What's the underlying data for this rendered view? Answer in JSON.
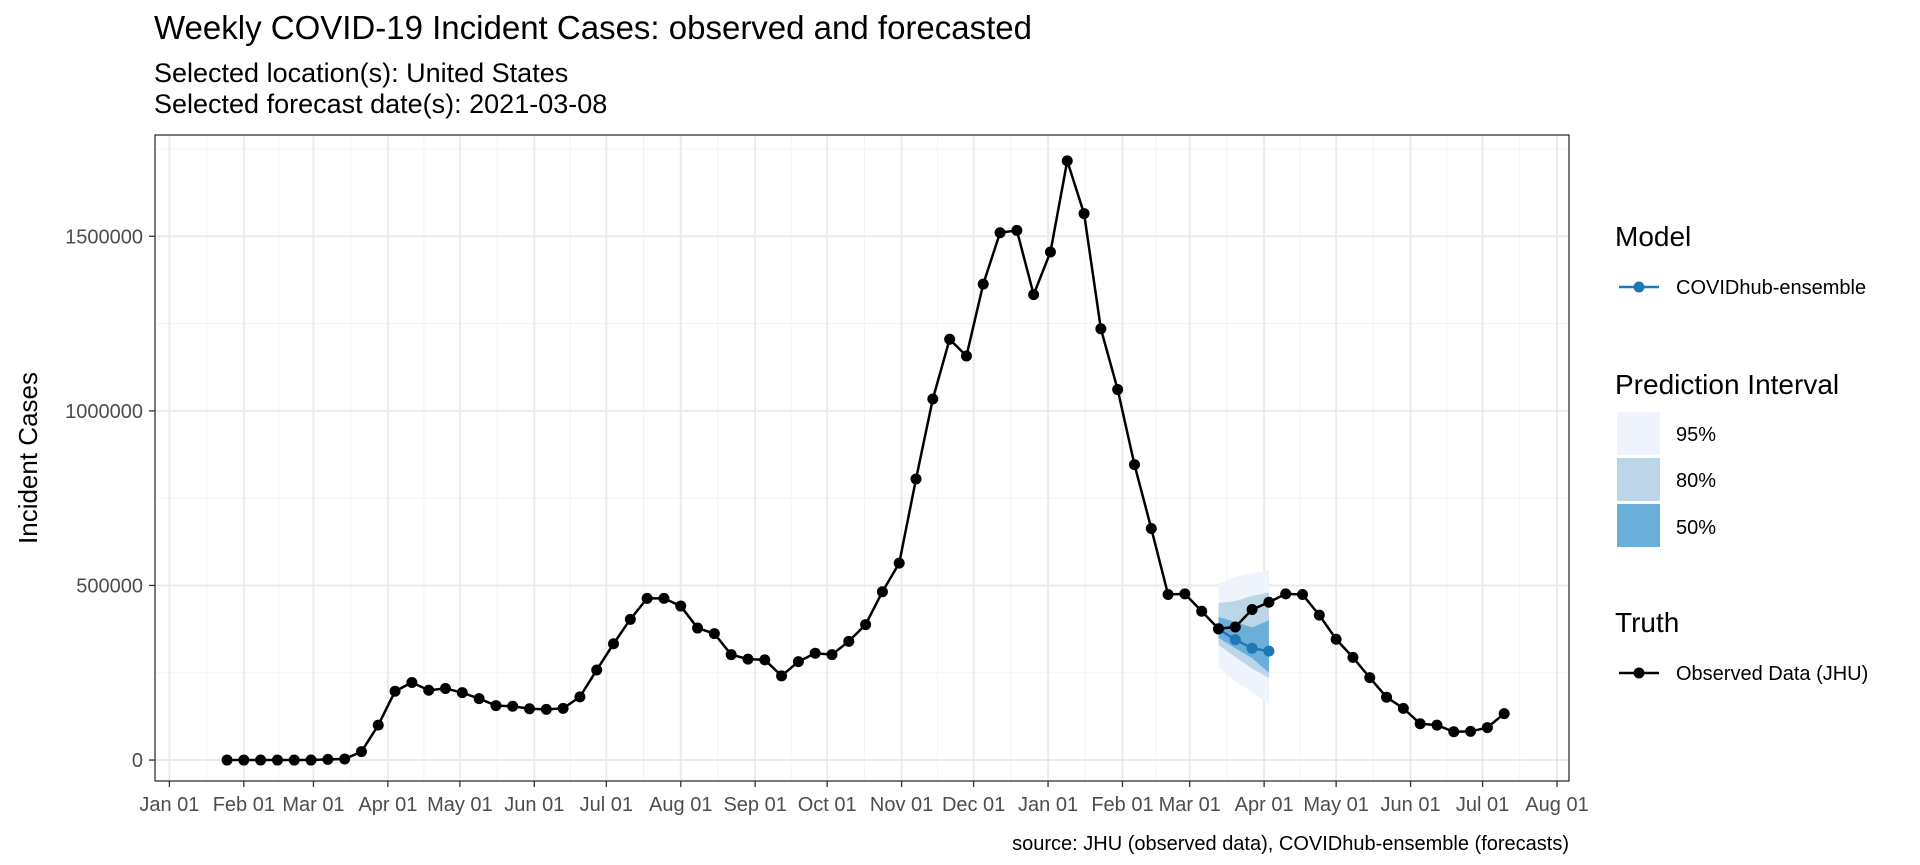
{
  "chart_data": {
    "type": "line",
    "title": "Weekly COVID-19 Incident Cases: observed and forecasted",
    "subtitle_lines": [
      "Selected location(s): United States",
      "Selected forecast date(s): 2021-03-08"
    ],
    "xlabel": "",
    "ylabel": "Incident Cases",
    "caption": "source: JHU (observed data), COVIDhub-ensemble (forecasts)",
    "x_range": [
      "2019-12-26",
      "2021-08-06"
    ],
    "ylim": [
      -60000,
      1790000
    ],
    "grid": true,
    "legend_position": "right",
    "x_ticks": [
      {
        "date": "2020-01-01",
        "label": "Jan 01"
      },
      {
        "date": "2020-02-01",
        "label": "Feb 01"
      },
      {
        "date": "2020-03-01",
        "label": "Mar 01"
      },
      {
        "date": "2020-04-01",
        "label": "Apr 01"
      },
      {
        "date": "2020-05-01",
        "label": "May 01"
      },
      {
        "date": "2020-06-01",
        "label": "Jun 01"
      },
      {
        "date": "2020-07-01",
        "label": "Jul 01"
      },
      {
        "date": "2020-08-01",
        "label": "Aug 01"
      },
      {
        "date": "2020-09-01",
        "label": "Sep 01"
      },
      {
        "date": "2020-10-01",
        "label": "Oct 01"
      },
      {
        "date": "2020-11-01",
        "label": "Nov 01"
      },
      {
        "date": "2020-12-01",
        "label": "Dec 01"
      },
      {
        "date": "2021-01-01",
        "label": "Jan 01"
      },
      {
        "date": "2021-02-01",
        "label": "Feb 01"
      },
      {
        "date": "2021-03-01",
        "label": "Mar 01"
      },
      {
        "date": "2021-04-01",
        "label": "Apr 01"
      },
      {
        "date": "2021-05-01",
        "label": "May 01"
      },
      {
        "date": "2021-06-01",
        "label": "Jun 01"
      },
      {
        "date": "2021-07-01",
        "label": "Jul 01"
      },
      {
        "date": "2021-08-01",
        "label": "Aug 01"
      }
    ],
    "y_ticks": [
      0,
      500000,
      1000000,
      1500000
    ],
    "y_tick_labels": [
      "0",
      "500000",
      "1000000",
      "1500000"
    ],
    "truth": {
      "name": "Observed Data (JHU)",
      "color": "#000000",
      "dates": [
        "2020-01-25",
        "2020-02-01",
        "2020-02-08",
        "2020-02-15",
        "2020-02-22",
        "2020-02-29",
        "2020-03-07",
        "2020-03-14",
        "2020-03-21",
        "2020-03-28",
        "2020-04-04",
        "2020-04-11",
        "2020-04-18",
        "2020-04-25",
        "2020-05-02",
        "2020-05-09",
        "2020-05-16",
        "2020-05-23",
        "2020-05-30",
        "2020-06-06",
        "2020-06-13",
        "2020-06-20",
        "2020-06-27",
        "2020-07-04",
        "2020-07-11",
        "2020-07-18",
        "2020-07-25",
        "2020-08-01",
        "2020-08-08",
        "2020-08-15",
        "2020-08-22",
        "2020-08-29",
        "2020-09-05",
        "2020-09-12",
        "2020-09-19",
        "2020-09-26",
        "2020-10-03",
        "2020-10-10",
        "2020-10-17",
        "2020-10-24",
        "2020-10-31",
        "2020-11-07",
        "2020-11-14",
        "2020-11-21",
        "2020-11-28",
        "2020-12-05",
        "2020-12-12",
        "2020-12-19",
        "2020-12-26",
        "2021-01-02",
        "2021-01-09",
        "2021-01-16",
        "2021-01-23",
        "2021-01-30",
        "2021-02-06",
        "2021-02-13",
        "2021-02-20",
        "2021-02-27",
        "2021-03-06",
        "2021-03-13",
        "2021-03-20",
        "2021-03-27",
        "2021-04-03",
        "2021-04-10",
        "2021-04-17",
        "2021-04-24",
        "2021-05-01",
        "2021-05-08",
        "2021-05-15",
        "2021-05-22",
        "2021-05-29",
        "2021-06-05",
        "2021-06-12",
        "2021-06-19",
        "2021-06-26",
        "2021-07-03",
        "2021-07-10"
      ],
      "values": [
        0,
        0,
        0,
        0,
        0,
        0,
        2000,
        3000,
        24000,
        100000,
        197000,
        222000,
        200000,
        205000,
        193000,
        176000,
        156000,
        154000,
        147000,
        145000,
        148000,
        181000,
        258000,
        333000,
        403000,
        463000,
        463000,
        441000,
        378000,
        362000,
        302000,
        289000,
        287000,
        241000,
        282000,
        306000,
        302000,
        340000,
        388000,
        482000,
        564000,
        805000,
        1034000,
        1205000,
        1157000,
        1363000,
        1510000,
        1517000,
        1333000,
        1455000,
        1716000,
        1565000,
        1235000,
        1061000,
        846000,
        663000,
        474000,
        476000,
        426000,
        376000,
        381000,
        431000,
        452000,
        476000,
        474000,
        415000,
        346000,
        294000,
        236000,
        180000,
        148000,
        104000,
        100000,
        81000,
        82000,
        93000,
        133000
      ]
    },
    "forecast": {
      "name": "COVIDhub-ensemble",
      "color": "#1f78b4",
      "dates": [
        "2021-03-13",
        "2021-03-20",
        "2021-03-27",
        "2021-04-03"
      ],
      "values": [
        375000,
        345000,
        320000,
        312000
      ],
      "intervals": [
        {
          "level": "95%",
          "color": "#eef3fc",
          "lower": [
            265000,
            225000,
            195000,
            160000
          ],
          "upper": [
            505000,
            525000,
            535000,
            545000
          ]
        },
        {
          "level": "80%",
          "color": "#bcd6e8",
          "lower": [
            330000,
            295000,
            262000,
            235000
          ],
          "upper": [
            450000,
            455000,
            470000,
            480000
          ]
        },
        {
          "level": "50%",
          "color": "#6aafda",
          "lower": [
            350000,
            320000,
            292000,
            250000
          ],
          "upper": [
            410000,
            395000,
            380000,
            400000
          ]
        }
      ]
    },
    "legend": {
      "model_title": "Model",
      "interval_title": "Prediction Interval",
      "truth_title": "Truth",
      "model_entries": [
        "COVIDhub-ensemble"
      ],
      "interval_entries": [
        "95%",
        "80%",
        "50%"
      ],
      "truth_entries": [
        "Observed Data (JHU)"
      ]
    }
  }
}
